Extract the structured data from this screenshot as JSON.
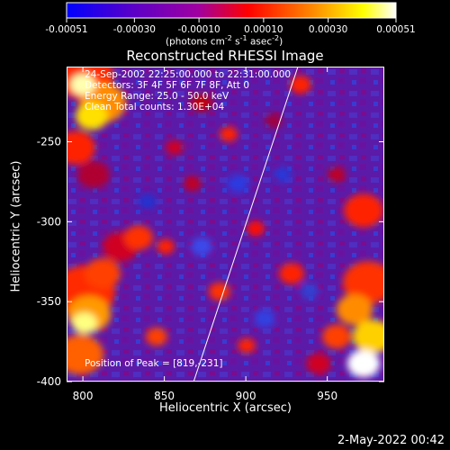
{
  "chart_data": {
    "type": "heatmap",
    "title": "Reconstructed RHESSI Image",
    "xlabel": "Heliocentric X (arcsec)",
    "ylabel": "Heliocentric Y (arcsec)",
    "xlim": [
      790,
      985
    ],
    "ylim": [
      -400,
      -203
    ],
    "x_ticks": [
      "800",
      "850",
      "900",
      "950"
    ],
    "x_tick_values": [
      800,
      850,
      900,
      950
    ],
    "y_ticks": [
      "-250",
      "-300",
      "-350",
      "-400"
    ],
    "y_tick_values": [
      -250,
      -300,
      -350,
      -400
    ],
    "colorbar": {
      "min": -0.00051,
      "max": 0.00051,
      "ticks": [
        "-0.00051",
        "-0.00030",
        "-0.00010",
        "0.00010",
        "0.00030",
        "0.00051"
      ],
      "tick_values": [
        -0.00051,
        -0.0003,
        -0.0001,
        0.0001,
        0.0003,
        0.00051
      ],
      "unit_text": "(photons cm",
      "unit_exp1": "-2",
      "unit_mid": " s",
      "unit_exp2": "-1",
      "unit_mid2": " asec",
      "unit_exp3": "-2",
      "unit_end": ")",
      "colors": [
        "#0000ff",
        "#5a00c8",
        "#a000a0",
        "#ff0000",
        "#ff8c00",
        "#ffff00",
        "#ffffff"
      ]
    },
    "annotations": {
      "time": "24-Sep-2002 22:25:00.000 to 22:31:00.000",
      "detectors": "Detectors: 3F 4F 5F 6F 7F 8F, Att 0",
      "energy": "Energy Range: 25.0 - 50.0 keV",
      "clean": "Clean     Total counts: 1.30E+04",
      "peak": "Position of Peak = [819,-231]"
    },
    "limb_line": [
      [
        868,
        -400
      ],
      [
        932,
        -203
      ]
    ],
    "bright_regions": [
      {
        "x": 805,
        "y": -232,
        "level": "high"
      },
      {
        "x": 800,
        "y": -352,
        "level": "high"
      },
      {
        "x": 975,
        "y": -330,
        "level": "high"
      }
    ]
  },
  "footer": {
    "timestamp": "2-May-2022 00:42"
  }
}
